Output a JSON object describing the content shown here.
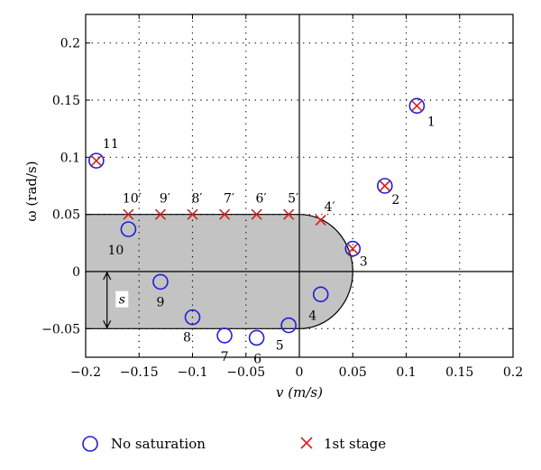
{
  "chart_data": {
    "type": "scatter",
    "title": "",
    "xlabel": "v (m/s)",
    "ylabel": "ω (rad/s)",
    "xlim": [
      -0.2,
      0.2
    ],
    "ylim": [
      -0.075,
      0.225
    ],
    "xticks": [
      -0.2,
      -0.15,
      -0.1,
      -0.05,
      0,
      0.05,
      0.1,
      0.15,
      0.2
    ],
    "xtick_labels": [
      "−0.2",
      "−0.15",
      "−0.1",
      "−0.05",
      "0",
      "0.05",
      "0.1",
      "0.15",
      "0.2"
    ],
    "yticks": [
      -0.05,
      0,
      0.05,
      0.1,
      0.15,
      0.2
    ],
    "ytick_labels": [
      "−0.05",
      "0",
      "0.05",
      "0.1",
      "0.15",
      "0.2"
    ],
    "grid": true,
    "region": {
      "description": "gray saturation region",
      "v_min": -0.2,
      "v_straight_max": 0.0,
      "omega_min": -0.05,
      "omega_max": 0.05,
      "cap_radius_v": 0.05,
      "label": "s"
    },
    "series": [
      {
        "name": "No saturation",
        "marker": "circle",
        "color": "#1f1fd6",
        "points": [
          {
            "label": "1",
            "v": 0.11,
            "w": 0.145
          },
          {
            "label": "2",
            "v": 0.08,
            "w": 0.075
          },
          {
            "label": "3",
            "v": 0.05,
            "w": 0.02
          },
          {
            "label": "4",
            "v": 0.02,
            "w": -0.02
          },
          {
            "label": "5",
            "v": -0.01,
            "w": -0.047
          },
          {
            "label": "6",
            "v": -0.04,
            "w": -0.058
          },
          {
            "label": "7",
            "v": -0.07,
            "w": -0.056
          },
          {
            "label": "8",
            "v": -0.1,
            "w": -0.04
          },
          {
            "label": "9",
            "v": -0.13,
            "w": -0.009
          },
          {
            "label": "10",
            "v": -0.16,
            "w": 0.037
          },
          {
            "label": "11",
            "v": -0.19,
            "w": 0.097
          }
        ]
      },
      {
        "name": "1st stage",
        "marker": "x",
        "color": "#d62020",
        "points": [
          {
            "label": "1",
            "v": 0.11,
            "w": 0.145
          },
          {
            "label": "2",
            "v": 0.08,
            "w": 0.075
          },
          {
            "label": "3",
            "v": 0.05,
            "w": 0.02
          },
          {
            "label": "4′",
            "v": 0.02,
            "w": 0.045
          },
          {
            "label": "5′",
            "v": -0.01,
            "w": 0.05
          },
          {
            "label": "6′",
            "v": -0.04,
            "w": 0.05
          },
          {
            "label": "7′",
            "v": -0.07,
            "w": 0.05
          },
          {
            "label": "8′",
            "v": -0.1,
            "w": 0.05
          },
          {
            "label": "9′",
            "v": -0.13,
            "w": 0.05
          },
          {
            "label": "10′",
            "v": -0.16,
            "w": 0.05
          },
          {
            "label": "11",
            "v": -0.19,
            "w": 0.097
          }
        ]
      }
    ],
    "legend": {
      "placement": "bottom",
      "entries": [
        {
          "name": "No saturation",
          "marker": "circle",
          "color": "#1f1fd6"
        },
        {
          "name": "1st stage",
          "marker": "x",
          "color": "#d62020"
        }
      ]
    }
  }
}
